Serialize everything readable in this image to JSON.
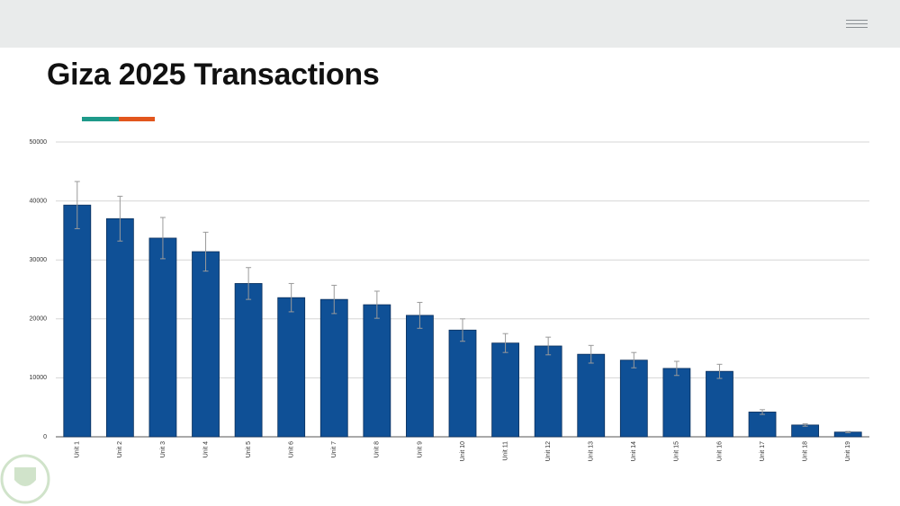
{
  "chart_data": {
    "type": "bar",
    "title": "Giza 2025 Transactions",
    "categories": [
      "Unit 1",
      "Unit 2",
      "Unit 3",
      "Unit 4",
      "Unit 5",
      "Unit 6",
      "Unit 7",
      "Unit 8",
      "Unit 9",
      "Unit 10",
      "Unit 11",
      "Unit 12",
      "Unit 13",
      "Unit 14",
      "Unit 15",
      "Unit 16",
      "Unit 17",
      "Unit 18",
      "Unit 19"
    ],
    "values": [
      39300,
      37000,
      33700,
      31400,
      26000,
      23600,
      23300,
      22400,
      20600,
      18100,
      15900,
      15400,
      14000,
      13000,
      11600,
      11100,
      4200,
      2000,
      800
    ],
    "errors": [
      4000,
      3800,
      3500,
      3300,
      2700,
      2400,
      2400,
      2300,
      2200,
      1900,
      1600,
      1500,
      1500,
      1300,
      1200,
      1200,
      400,
      200,
      100
    ],
    "color": "#0f5096",
    "error_color": "#9a9a9a",
    "ylim": [
      0,
      50000
    ],
    "yticks": [
      0,
      10000,
      20000,
      30000,
      40000,
      50000
    ],
    "grid": true
  }
}
